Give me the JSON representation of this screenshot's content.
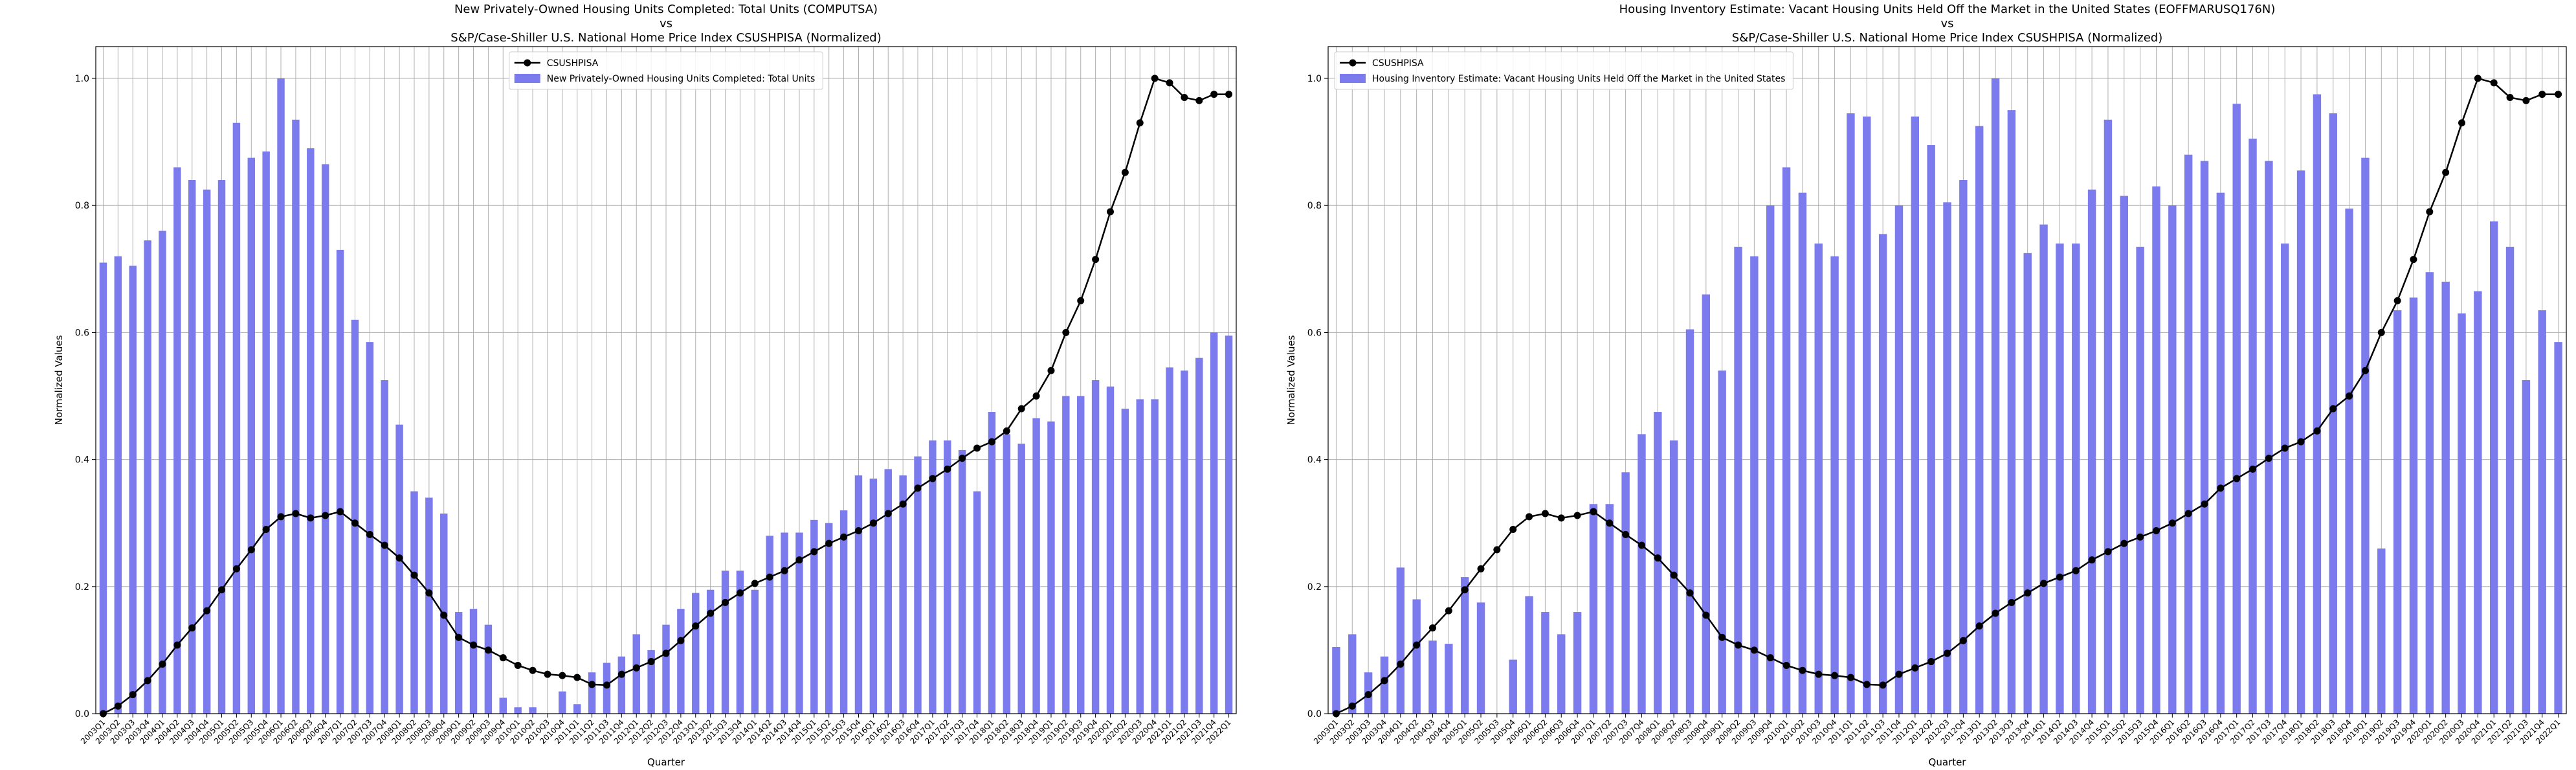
{
  "chart_data": [
    {
      "type": "combo",
      "title": [
        "New Privately-Owned Housing Units Completed: Total Units (COMPUTSA)",
        "vs",
        "S&P/Case-Shiller U.S. National Home Price Index CSUSHPISA (Normalized)"
      ],
      "x_label": "Quarter",
      "y_label": "Normalized Values",
      "ylim": [
        0,
        1.05
      ],
      "yticks": [
        {
          "value": 0,
          "label": "0.0"
        },
        0.2,
        0.4,
        0.6,
        0.8,
        {
          "value": 1,
          "label": "1.0"
        }
      ],
      "grid": true,
      "legend": "upper center",
      "categories": [
        "2003Q1",
        "2003Q2",
        "2003Q3",
        "2003Q4",
        "2004Q1",
        "2004Q2",
        "2004Q3",
        "2004Q4",
        "2005Q1",
        "2005Q2",
        "2005Q3",
        "2005Q4",
        "2006Q1",
        "2006Q2",
        "2006Q3",
        "2006Q4",
        "2007Q1",
        "2007Q2",
        "2007Q3",
        "2007Q4",
        "2008Q1",
        "2008Q2",
        "2008Q3",
        "2008Q4",
        "2009Q1",
        "2009Q2",
        "2009Q3",
        "2009Q4",
        "2010Q1",
        "2010Q2",
        "2010Q3",
        "2010Q4",
        "2011Q1",
        "2011Q2",
        "2011Q3",
        "2011Q4",
        "2012Q1",
        "2012Q2",
        "2012Q3",
        "2012Q4",
        "2013Q1",
        "2013Q2",
        "2013Q3",
        "2013Q4",
        "2014Q1",
        "2014Q2",
        "2014Q3",
        "2014Q4",
        "2015Q1",
        "2015Q2",
        "2015Q3",
        "2015Q4",
        "2016Q1",
        "2016Q2",
        "2016Q3",
        "2016Q4",
        "2017Q1",
        "2017Q2",
        "2017Q3",
        "2017Q4",
        "2018Q1",
        "2018Q2",
        "2018Q3",
        "2018Q4",
        "2019Q1",
        "2019Q2",
        "2019Q3",
        "2019Q4",
        "2020Q1",
        "2020Q2",
        "2020Q3",
        "2020Q4",
        "2021Q1",
        "2021Q2",
        "2021Q3",
        "2021Q4",
        "2022Q1"
      ],
      "series": [
        {
          "name": "CSUSHPISA",
          "type": "line",
          "color": "#000000",
          "values": [
            0,
            0.012,
            0.03,
            0.052,
            0.078,
            0.108,
            0.135,
            0.162,
            0.195,
            0.228,
            0.258,
            0.29,
            0.31,
            0.315,
            0.308,
            0.312,
            0.318,
            0.3,
            0.282,
            0.265,
            0.245,
            0.218,
            0.19,
            0.155,
            0.12,
            0.108,
            0.1,
            0.088,
            0.076,
            0.068,
            0.062,
            0.06,
            0.057,
            0.046,
            0.045,
            0.062,
            0.072,
            0.082,
            0.095,
            0.115,
            0.138,
            0.158,
            0.175,
            0.19,
            0.205,
            0.215,
            0.225,
            0.242,
            0.255,
            0.268,
            0.278,
            0.288,
            0.3,
            0.315,
            0.33,
            0.355,
            0.37,
            0.385,
            0.402,
            0.418,
            0.428,
            0.445,
            0.48,
            0.5,
            0.54,
            0.6,
            0.65,
            0.715,
            0.79,
            0.852,
            0.93,
            1.0,
            0.993,
            0.97,
            0.965,
            0.975,
            0.975
          ]
        },
        {
          "name": "New Privately-Owned Housing Units Completed: Total Units",
          "type": "bar",
          "color": "#7b7bee",
          "values": [
            0.71,
            0.72,
            0.705,
            0.745,
            0.76,
            0.86,
            0.84,
            0.825,
            0.84,
            0.93,
            0.875,
            0.885,
            1.0,
            0.935,
            0.89,
            0.865,
            0.73,
            0.62,
            0.585,
            0.525,
            0.455,
            0.35,
            0.34,
            0.315,
            0.16,
            0.165,
            0.14,
            0.025,
            0.01,
            0.01,
            0,
            0.035,
            0.015,
            0.065,
            0.08,
            0.09,
            0.125,
            0.1,
            0.14,
            0.165,
            0.19,
            0.195,
            0.225,
            0.225,
            0.195,
            0.28,
            0.285,
            0.285,
            0.305,
            0.3,
            0.32,
            0.375,
            0.37,
            0.385,
            0.375,
            0.405,
            0.43,
            0.43,
            0.415,
            0.35,
            0.475,
            0.44,
            0.425,
            0.465,
            0.46,
            0.5,
            0.5,
            0.525,
            0.515,
            0.48,
            0.495,
            0.495,
            0.545,
            0.54,
            0.56,
            0.6,
            0.595
          ]
        }
      ]
    },
    {
      "type": "combo",
      "title": [
        "Housing Inventory Estimate: Vacant Housing Units Held Off the Market in the United States (EOFFMARUSQ176N)",
        "vs",
        "S&P/Case-Shiller U.S. National Home Price Index CSUSHPISA (Normalized)"
      ],
      "x_label": "Quarter",
      "y_label": "Normalized Values",
      "ylim": [
        0,
        1.05
      ],
      "yticks": [
        {
          "value": 0,
          "label": "0.0"
        },
        0.2,
        0.4,
        0.6,
        0.8,
        {
          "value": 1,
          "label": "1.0"
        }
      ],
      "grid": true,
      "legend": "upper left",
      "categories": [
        "2003Q1",
        "2003Q2",
        "2003Q3",
        "2003Q4",
        "2004Q1",
        "2004Q2",
        "2004Q3",
        "2004Q4",
        "2005Q1",
        "2005Q2",
        "2005Q3",
        "2005Q4",
        "2006Q1",
        "2006Q2",
        "2006Q3",
        "2006Q4",
        "2007Q1",
        "2007Q2",
        "2007Q3",
        "2007Q4",
        "2008Q1",
        "2008Q2",
        "2008Q3",
        "2008Q4",
        "2009Q1",
        "2009Q2",
        "2009Q3",
        "2009Q4",
        "2010Q1",
        "2010Q2",
        "2010Q3",
        "2010Q4",
        "2011Q1",
        "2011Q2",
        "2011Q3",
        "2011Q4",
        "2012Q1",
        "2012Q2",
        "2012Q3",
        "2012Q4",
        "2013Q1",
        "2013Q2",
        "2013Q3",
        "2013Q4",
        "2014Q1",
        "2014Q2",
        "2014Q3",
        "2014Q4",
        "2015Q1",
        "2015Q2",
        "2015Q3",
        "2015Q4",
        "2016Q1",
        "2016Q2",
        "2016Q3",
        "2016Q4",
        "2017Q1",
        "2017Q2",
        "2017Q3",
        "2017Q4",
        "2018Q1",
        "2018Q2",
        "2018Q3",
        "2018Q4",
        "2019Q1",
        "2019Q2",
        "2019Q3",
        "2019Q4",
        "2020Q1",
        "2020Q2",
        "2020Q3",
        "2020Q4",
        "2021Q1",
        "2021Q2",
        "2021Q3",
        "2021Q4",
        "2022Q1"
      ],
      "series": [
        {
          "name": "CSUSHPISA",
          "type": "line",
          "color": "#000000",
          "values": [
            0,
            0.012,
            0.03,
            0.052,
            0.078,
            0.108,
            0.135,
            0.162,
            0.195,
            0.228,
            0.258,
            0.29,
            0.31,
            0.315,
            0.308,
            0.312,
            0.318,
            0.3,
            0.282,
            0.265,
            0.245,
            0.218,
            0.19,
            0.155,
            0.12,
            0.108,
            0.1,
            0.088,
            0.076,
            0.068,
            0.062,
            0.06,
            0.057,
            0.046,
            0.045,
            0.062,
            0.072,
            0.082,
            0.095,
            0.115,
            0.138,
            0.158,
            0.175,
            0.19,
            0.205,
            0.215,
            0.225,
            0.242,
            0.255,
            0.268,
            0.278,
            0.288,
            0.3,
            0.315,
            0.33,
            0.355,
            0.37,
            0.385,
            0.402,
            0.418,
            0.428,
            0.445,
            0.48,
            0.5,
            0.54,
            0.6,
            0.65,
            0.715,
            0.79,
            0.852,
            0.93,
            1.0,
            0.993,
            0.97,
            0.965,
            0.975,
            0.975
          ]
        },
        {
          "name": "Housing Inventory Estimate: Vacant Housing Units Held Off the Market in the United States",
          "type": "bar",
          "color": "#7b7bee",
          "values": [
            0.105,
            0.125,
            0.065,
            0.09,
            0.23,
            0.18,
            0.115,
            0.11,
            0.215,
            0.175,
            null,
            0.085,
            0.185,
            0.16,
            0.125,
            0.16,
            0.33,
            0.33,
            0.38,
            0.44,
            0.475,
            0.43,
            0.605,
            0.66,
            0.54,
            0.735,
            0.72,
            0.8,
            0.86,
            0.82,
            0.74,
            0.72,
            0.945,
            0.94,
            0.755,
            0.8,
            0.94,
            0.895,
            0.805,
            0.84,
            0.925,
            1.0,
            0.95,
            0.725,
            0.77,
            0.74,
            0.74,
            0.825,
            0.935,
            0.815,
            0.735,
            0.83,
            0.8,
            0.88,
            0.87,
            0.82,
            0.96,
            0.905,
            0.87,
            0.74,
            0.855,
            0.975,
            0.945,
            0.795,
            0.875,
            0.26,
            0.635,
            0.655,
            0.695,
            0.68,
            0.63,
            0.665,
            0.775,
            0.735,
            0.525,
            0.635,
            0.585
          ]
        }
      ]
    }
  ]
}
